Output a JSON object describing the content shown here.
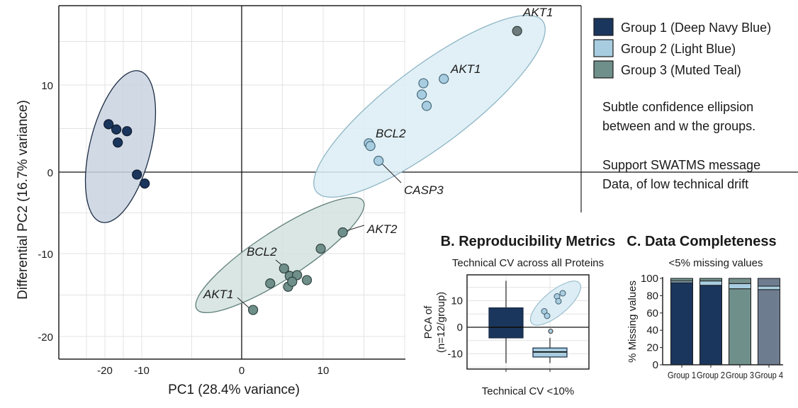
{
  "colors": {
    "group1": "#1b365d",
    "group2": "#a8cde0",
    "group3": "#6f8f8a",
    "group4": "#6e7c90",
    "highlight": "#6e7a7c"
  },
  "legend": {
    "items": [
      {
        "label": "Group 1 (Deep Navy Blue)",
        "color": "#1b365d"
      },
      {
        "label": "Group 2 (Light Blue)",
        "color": "#a8cde0"
      },
      {
        "label": "Group 3 (Muted Teal)",
        "color": "#6f8f8a"
      }
    ]
  },
  "notes": [
    [
      "Subtle confidence ellipsion",
      "between and w the groups."
    ],
    [
      "Support SWATMS message",
      "Data, of low technical drift"
    ]
  ],
  "chart_data": [
    {
      "type": "scatter",
      "title": "",
      "xlabel": "PC1 (28.4% variance)",
      "ylabel": "Differential PC2 (16.7% variance)",
      "xticks": [
        -20,
        -10,
        0,
        10
      ],
      "yticks": [
        10,
        0,
        -10,
        -20
      ],
      "grid": true,
      "confidence_ellipses": true,
      "series": [
        {
          "group": "group1",
          "points": [
            [
              -19.0,
              5.5
            ],
            [
              -16.9,
              4.9
            ],
            [
              -14.0,
              4.7
            ],
            [
              -16.5,
              3.4
            ],
            [
              -11.3,
              -0.3
            ],
            [
              -9.7,
              -1.4
            ]
          ]
        },
        {
          "group": "group2",
          "points": [
            [
              15.6,
              3.3
            ],
            [
              15.8,
              3.0
            ],
            [
              16.8,
              1.3
            ],
            [
              22.3,
              10.2
            ],
            [
              22.1,
              8.9
            ],
            [
              22.7,
              7.6
            ],
            [
              24.8,
              10.7
            ]
          ]
        },
        {
          "group": "highlight",
          "points": [
            [
              33.8,
              16.2
            ]
          ]
        },
        {
          "group": "group3",
          "points": [
            [
              1.4,
              -16.8
            ],
            [
              3.5,
              -13.6
            ],
            [
              5.2,
              -11.8
            ],
            [
              5.9,
              -12.7
            ],
            [
              6.8,
              -12.6
            ],
            [
              5.7,
              -14.0
            ],
            [
              6.2,
              -13.4
            ],
            [
              8.0,
              -13.2
            ],
            [
              9.7,
              -9.4
            ],
            [
              12.4,
              -7.4
            ]
          ]
        }
      ],
      "annotations": [
        {
          "text": "AKT1",
          "point": [
            33.8,
            16.2
          ]
        },
        {
          "text": "AKT1",
          "point": [
            24.8,
            10.7
          ]
        },
        {
          "text": "BCL2",
          "point": [
            15.6,
            3.3
          ]
        },
        {
          "text": "CASP3",
          "point": [
            16.8,
            1.3
          ]
        },
        {
          "text": "AKT2",
          "point": [
            12.4,
            -7.4
          ]
        },
        {
          "text": "BCL2",
          "point": [
            5.9,
            -12.7
          ]
        },
        {
          "text": "AKT1",
          "point": [
            1.4,
            -16.8
          ]
        }
      ]
    },
    {
      "type": "box",
      "title": "B. Reproducibility Metrics",
      "subtitle": "Technical CV across all Proteins",
      "ylabel_lines": [
        "PCA of",
        "(n=12/group)"
      ],
      "xlabel": "Technical CV <10%",
      "yticks": [
        10,
        0,
        -10
      ],
      "ylim": [
        -16,
        19
      ],
      "boxes": [
        {
          "group": "group1",
          "whisker_low": -13.5,
          "q1": -4.0,
          "median": 0.0,
          "q3": 7.3,
          "whisker_high": 17.5
        },
        {
          "group": "group2",
          "whisker_low": -13.5,
          "q1": -11.2,
          "median": -9.3,
          "q3": -7.8,
          "whisker_high": -4.0,
          "outliers": [
            -1.5
          ]
        }
      ],
      "cluster_points": [
        6.0,
        4.3,
        11.6,
        9.8,
        12.8
      ]
    },
    {
      "type": "bar",
      "stacked": true,
      "title": "C. Data Completeness",
      "subtitle": "<5% missing values",
      "ylabel": "% Missing values",
      "yticks": [
        0,
        20,
        40,
        60,
        80,
        100
      ],
      "ylim": [
        0,
        100
      ],
      "categories": [
        "Group 1",
        "Group 2",
        "Group 3",
        "Group 4"
      ],
      "stacks": [
        [
          {
            "v": 95,
            "color": "#1b365d"
          },
          {
            "v": 2,
            "color": "#a8cde0"
          },
          {
            "v": 3,
            "color": "#6f8f8a"
          }
        ],
        [
          {
            "v": 92,
            "color": "#1b365d"
          },
          {
            "v": 5,
            "color": "#a8cde0"
          },
          {
            "v": 3,
            "color": "#6f8f8a"
          }
        ],
        [
          {
            "v": 88,
            "color": "#6f8f8a"
          },
          {
            "v": 6,
            "color": "#a8cde0"
          },
          {
            "v": 6,
            "color": "#74908c"
          }
        ],
        [
          {
            "v": 87,
            "color": "#6e7c90"
          },
          {
            "v": 4,
            "color": "#a8cde0"
          },
          {
            "v": 9,
            "color": "#6e7c90"
          }
        ]
      ]
    }
  ]
}
